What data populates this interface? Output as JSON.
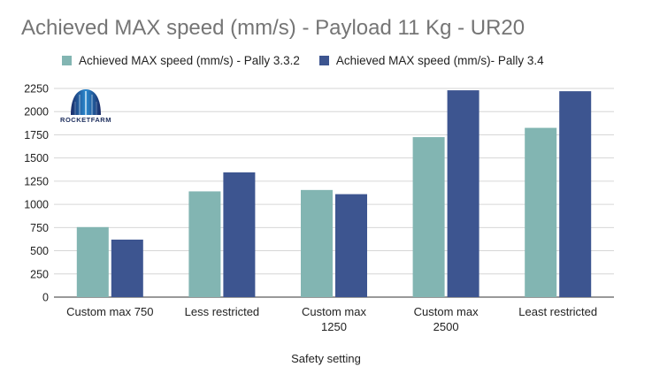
{
  "chart_data": {
    "type": "bar",
    "title": "Achieved MAX speed (mm/s) - Payload 11 Kg - UR20",
    "xlabel": "Safety setting",
    "ylabel": "",
    "categories": [
      "Custom max 750",
      "Less restricted",
      "Custom max\n1250",
      "Custom max\n2500",
      "Least restricted"
    ],
    "series": [
      {
        "name": "Achieved MAX speed (mm/s) - Pally 3.3.2",
        "color": "#82b5b2",
        "values": [
          755,
          1140,
          1155,
          1725,
          1825
        ]
      },
      {
        "name": "Achieved MAX speed (mm/s)- Pally 3.4",
        "color": "#3d5590",
        "values": [
          620,
          1345,
          1110,
          2230,
          2220
        ]
      }
    ],
    "ylim": [
      0,
      2250
    ],
    "yticks": [
      0,
      250,
      500,
      750,
      1000,
      1250,
      1500,
      1750,
      2000,
      2250
    ],
    "grid": true,
    "legend_position": "top"
  },
  "logo": {
    "text": "ROCKETFARM",
    "color": "#1c2d5c"
  }
}
